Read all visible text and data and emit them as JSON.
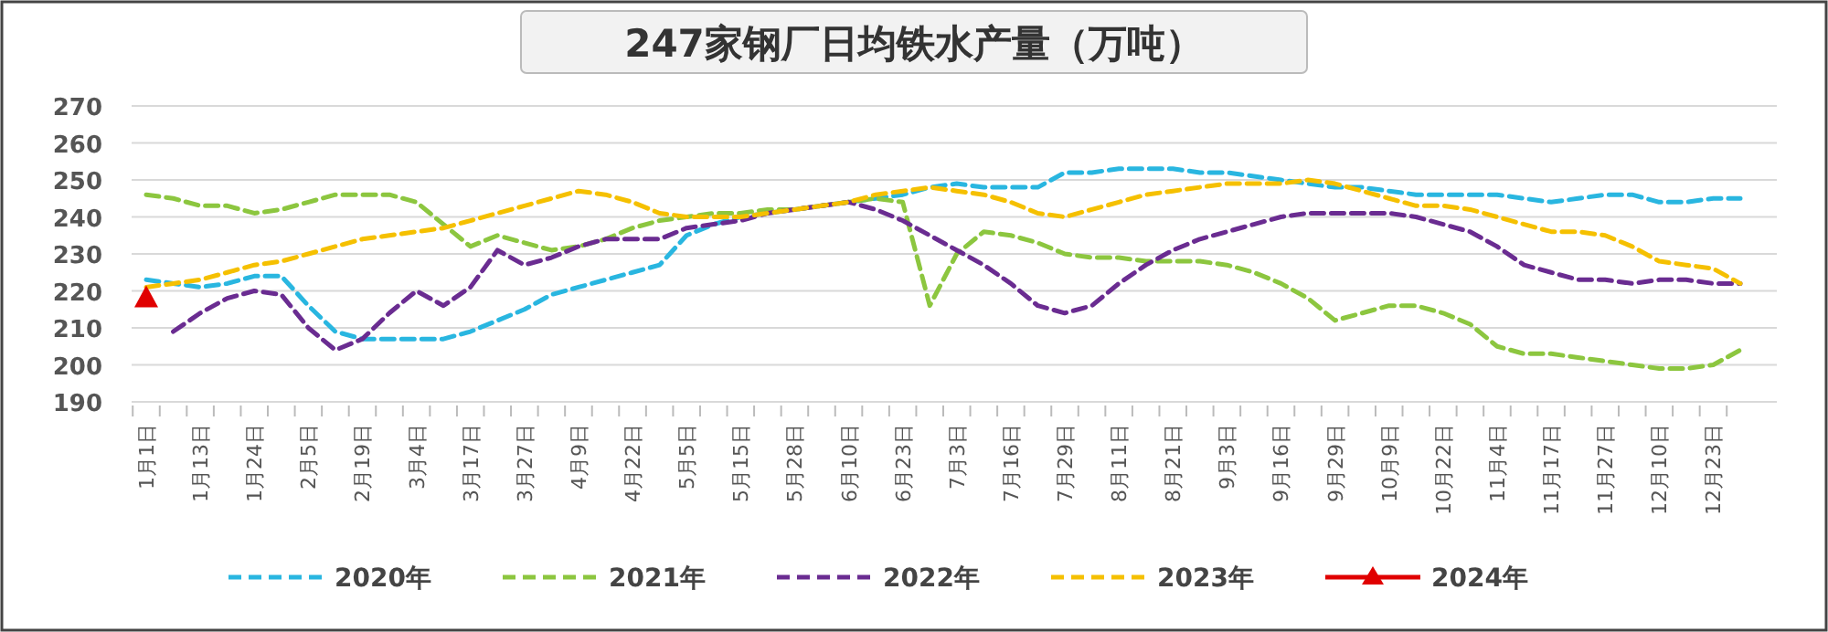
{
  "chart_data": {
    "type": "line",
    "title": "247家钢厂日均铁水产量（万吨）",
    "categories": [
      "1月1日",
      null,
      "1月13日",
      null,
      "1月24日",
      null,
      "2月5日",
      null,
      "2月19日",
      null,
      "3月4日",
      null,
      "3月17日",
      null,
      "3月27日",
      null,
      "4月9日",
      null,
      "4月22日",
      null,
      "5月5日",
      null,
      "5月15日",
      null,
      "5月28日",
      null,
      "6月10日",
      null,
      "6月23日",
      null,
      "7月3日",
      null,
      "7月16日",
      null,
      "7月29日",
      null,
      "8月11日",
      null,
      "8月21日",
      null,
      "9月3日",
      null,
      "9月16日",
      null,
      "9月29日",
      null,
      "10月9日",
      null,
      "10月22日",
      null,
      "11月4日",
      null,
      "11月17日",
      null,
      "11月27日",
      null,
      "12月10日",
      null,
      "12月23日",
      null
    ],
    "series": [
      {
        "name": "2020年",
        "color": "#29b6e0",
        "line_style": "dashed",
        "marker": "none",
        "values": [
          223,
          222,
          221,
          222,
          224,
          224,
          216,
          209,
          207,
          207,
          207,
          207,
          209,
          212,
          215,
          219,
          221,
          223,
          225,
          227,
          235,
          238,
          240,
          241,
          242,
          243,
          244,
          245,
          246,
          248,
          249,
          248,
          248,
          248,
          252,
          252,
          253,
          253,
          253,
          252,
          252,
          251,
          250,
          249,
          248,
          248,
          247,
          246,
          246,
          246,
          246,
          245,
          244,
          245,
          246,
          246,
          244,
          244,
          245,
          245
        ]
      },
      {
        "name": "2021年",
        "color": "#8cc63f",
        "line_style": "dashed",
        "marker": "none",
        "values": [
          246,
          245,
          243,
          243,
          241,
          242,
          244,
          246,
          246,
          246,
          244,
          238,
          232,
          235,
          233,
          231,
          232,
          234,
          237,
          239,
          240,
          241,
          241,
          242,
          242,
          243,
          244,
          245,
          244,
          216,
          230,
          236,
          235,
          233,
          230,
          229,
          229,
          228,
          228,
          228,
          227,
          225,
          222,
          218,
          212,
          214,
          216,
          216,
          214,
          211,
          205,
          203,
          203,
          202,
          201,
          200,
          199,
          199,
          200,
          204
        ]
      },
      {
        "name": "2022年",
        "color": "#6a2c91",
        "line_style": "dashed",
        "marker": "none",
        "values": [
          null,
          209,
          214,
          218,
          220,
          219,
          210,
          204,
          207,
          214,
          220,
          216,
          221,
          231,
          227,
          229,
          232,
          234,
          234,
          234,
          237,
          238,
          239,
          241,
          242,
          243,
          244,
          242,
          239,
          235,
          231,
          227,
          222,
          216,
          214,
          216,
          222,
          227,
          231,
          234,
          236,
          238,
          240,
          241,
          241,
          241,
          241,
          240,
          238,
          236,
          232,
          227,
          225,
          223,
          223,
          222,
          223,
          223,
          222,
          222
        ]
      },
      {
        "name": "2023年",
        "color": "#f5c000",
        "line_style": "dashed",
        "marker": "none",
        "values": [
          221,
          222,
          223,
          225,
          227,
          228,
          230,
          232,
          234,
          235,
          236,
          237,
          239,
          241,
          243,
          245,
          247,
          246,
          244,
          241,
          240,
          240,
          240,
          241,
          242,
          243,
          244,
          246,
          247,
          248,
          247,
          246,
          244,
          241,
          240,
          242,
          244,
          246,
          247,
          248,
          249,
          249,
          249,
          250,
          249,
          247,
          245,
          243,
          243,
          242,
          240,
          238,
          236,
          236,
          235,
          232,
          228,
          227,
          226,
          222
        ]
      },
      {
        "name": "2024年",
        "color": "#e00000",
        "line_style": "solid",
        "marker": "triangle",
        "values": [
          218,
          null,
          null,
          null,
          null,
          null,
          null,
          null,
          null,
          null,
          null,
          null,
          null,
          null,
          null,
          null,
          null,
          null,
          null,
          null,
          null,
          null,
          null,
          null,
          null,
          null,
          null,
          null,
          null,
          null,
          null,
          null,
          null,
          null,
          null,
          null,
          null,
          null,
          null,
          null,
          null,
          null,
          null,
          null,
          null,
          null,
          null,
          null,
          null,
          null,
          null,
          null,
          null,
          null,
          null,
          null,
          null,
          null,
          null,
          null
        ]
      }
    ],
    "ylim": [
      190,
      270
    ],
    "yticks": [
      190,
      200,
      210,
      220,
      230,
      240,
      250,
      260,
      270
    ],
    "grid": "y",
    "legend": "bottom"
  }
}
